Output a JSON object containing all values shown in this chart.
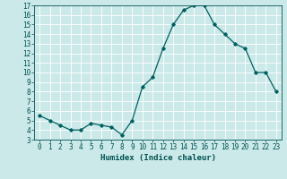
{
  "x": [
    0,
    1,
    2,
    3,
    4,
    5,
    6,
    7,
    8,
    9,
    10,
    11,
    12,
    13,
    14,
    15,
    16,
    17,
    18,
    19,
    20,
    21,
    22,
    23
  ],
  "y": [
    5.5,
    5.0,
    4.5,
    4.0,
    4.0,
    4.7,
    4.5,
    4.3,
    3.5,
    5.0,
    8.5,
    9.5,
    12.5,
    15.0,
    16.5,
    17.0,
    17.0,
    15.0,
    14.0,
    13.0,
    12.5,
    10.0,
    10.0,
    8.0
  ],
  "ylim": [
    3,
    17
  ],
  "xlim_min": -0.5,
  "xlim_max": 23.5,
  "yticks": [
    3,
    4,
    5,
    6,
    7,
    8,
    9,
    10,
    11,
    12,
    13,
    14,
    15,
    16,
    17
  ],
  "xticks": [
    0,
    1,
    2,
    3,
    4,
    5,
    6,
    7,
    8,
    9,
    10,
    11,
    12,
    13,
    14,
    15,
    16,
    17,
    18,
    19,
    20,
    21,
    22,
    23
  ],
  "xlabel": "Humidex (Indice chaleur)",
  "line_color": "#006060",
  "marker": "D",
  "marker_size": 1.8,
  "bg_color": "#cbe9e9",
  "grid_color": "#ffffff",
  "tick_label_color": "#005050",
  "xlabel_color": "#005050",
  "xlabel_fontsize": 6.5,
  "tick_fontsize": 5.5,
  "linewidth": 0.9
}
